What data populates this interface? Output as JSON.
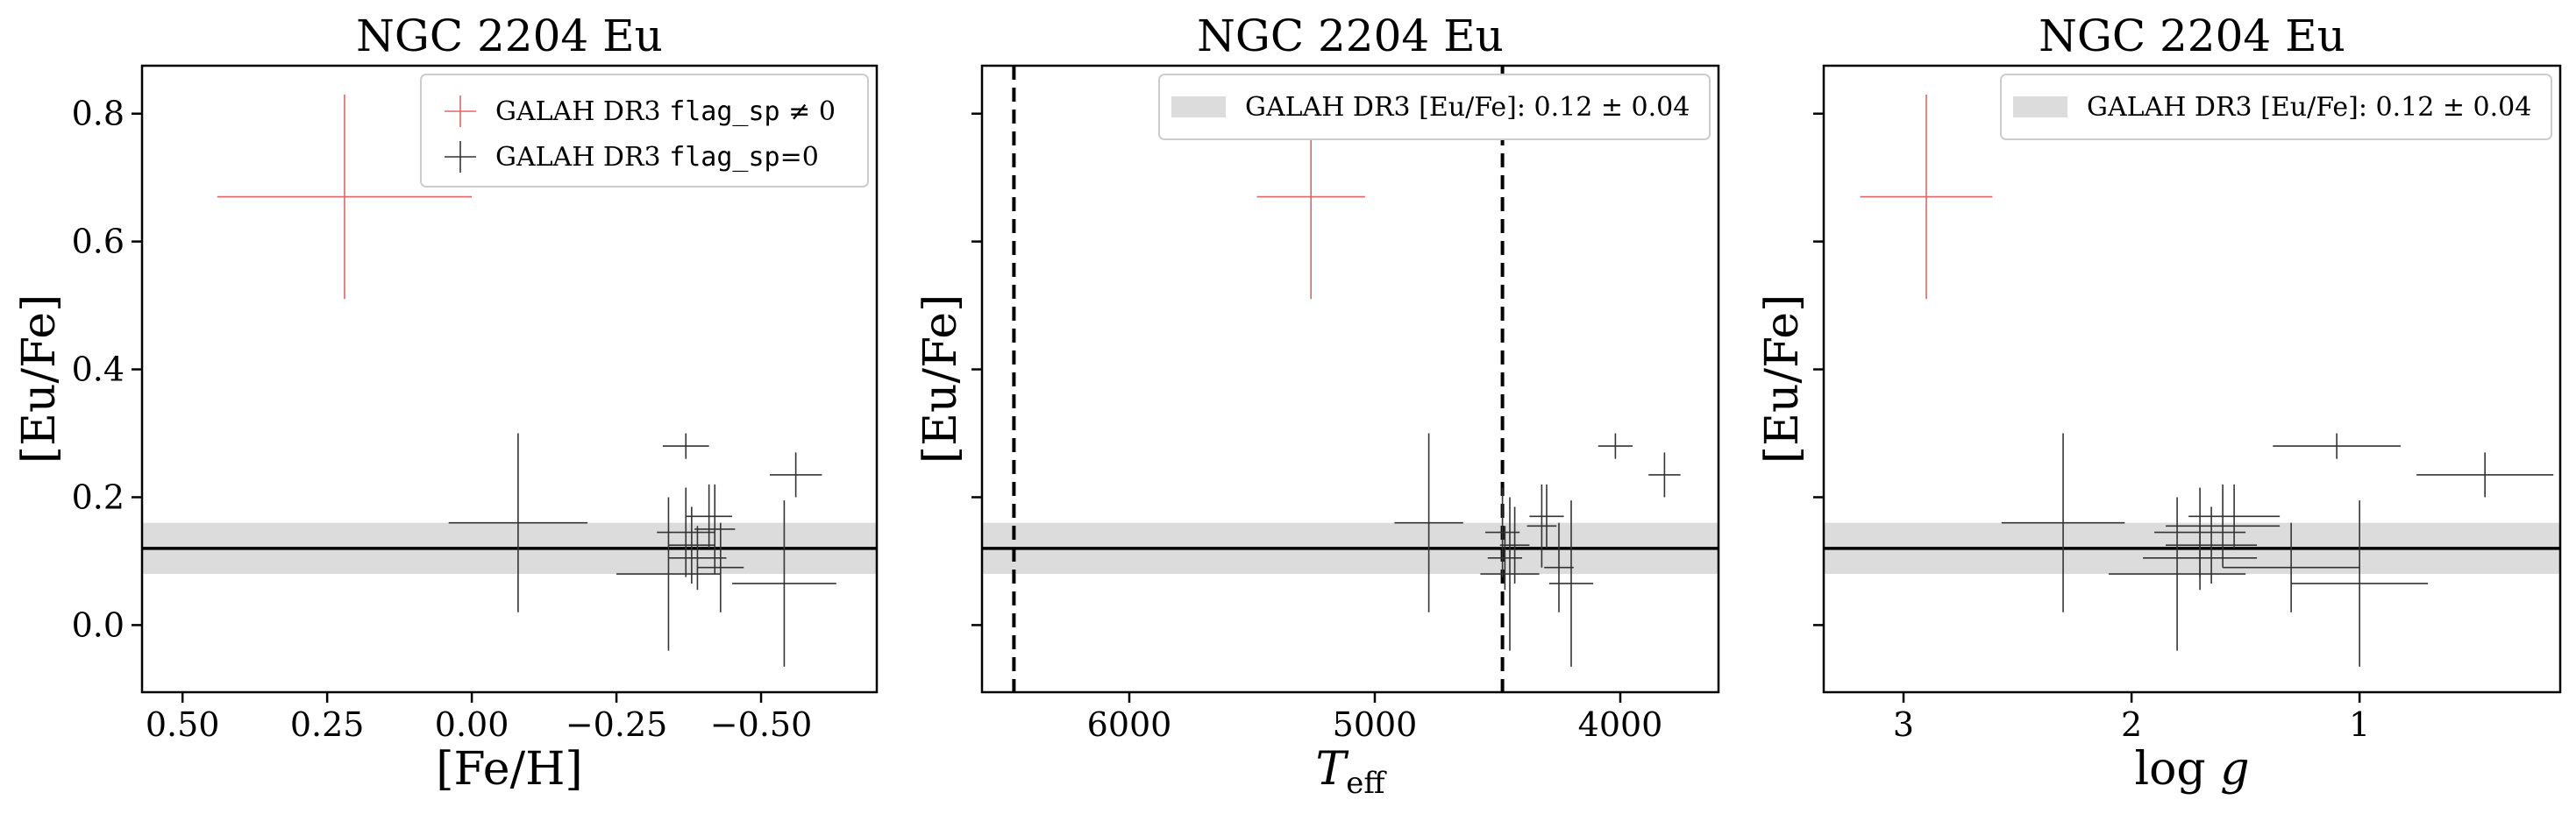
{
  "colors": {
    "flag_nonzero": "#e06666",
    "flag_zero": "#333333",
    "band": "#dcdcdc",
    "mean_line": "#000000",
    "frame": "#000000"
  },
  "chart_data": [
    {
      "type": "scatter",
      "title": "NGC 2204 Eu",
      "xlabel": "[Fe/H]",
      "ylabel": "[Eu/Fe]",
      "xlim": [
        0.57,
        -0.7
      ],
      "ylim": [
        -0.105,
        0.875
      ],
      "x_inverted": true,
      "xticks": [
        0.5,
        0.25,
        0.0,
        -0.25,
        -0.5
      ],
      "xtick_labels": [
        "0.50",
        "0.25",
        "0.00",
        "−0.25",
        "−0.50"
      ],
      "yticks": [
        0.0,
        0.2,
        0.4,
        0.6,
        0.8
      ],
      "ytick_labels": [
        "0.0",
        "0.2",
        "0.4",
        "0.6",
        "0.8"
      ],
      "show_ytick_labels": true,
      "grid": false,
      "legend": {
        "placement": "top-right",
        "entries": [
          {
            "series": 0,
            "prefix": "GALAH DR3 ",
            "mono": "flag_sp",
            "suffix": " ≠ 0"
          },
          {
            "series": 1,
            "prefix": "GALAH DR3 ",
            "mono": "flag_sp",
            "suffix": "=0"
          }
        ]
      },
      "band": {
        "mean": 0.12,
        "err": 0.04
      },
      "series": [
        {
          "name": "GALAH DR3 flag_sp ≠ 0",
          "color": "#e06666",
          "points": [
            {
              "x": 0.22,
              "y": 0.67,
              "xerr": 0.22,
              "yerr": 0.16
            }
          ]
        },
        {
          "name": "GALAH DR3 flag_sp=0",
          "color": "#333333",
          "points": [
            {
              "x": -0.08,
              "y": 0.16,
              "xerr": 0.12,
              "yerr": 0.14
            },
            {
              "x": -0.37,
              "y": 0.28,
              "xerr": 0.04,
              "yerr": 0.02
            },
            {
              "x": -0.56,
              "y": 0.235,
              "xerr": 0.045,
              "yerr": 0.035
            },
            {
              "x": -0.34,
              "y": 0.08,
              "xerr": 0.09,
              "yerr": 0.12
            },
            {
              "x": -0.37,
              "y": 0.145,
              "xerr": 0.05,
              "yerr": 0.07
            },
            {
              "x": -0.41,
              "y": 0.17,
              "xerr": 0.04,
              "yerr": 0.05
            },
            {
              "x": -0.42,
              "y": 0.15,
              "xerr": 0.035,
              "yerr": 0.07
            },
            {
              "x": -0.38,
              "y": 0.125,
              "xerr": 0.04,
              "yerr": 0.06
            },
            {
              "x": -0.39,
              "y": 0.105,
              "xerr": 0.05,
              "yerr": 0.05
            },
            {
              "x": -0.43,
              "y": 0.09,
              "xerr": 0.04,
              "yerr": 0.07
            },
            {
              "x": -0.54,
              "y": 0.065,
              "xerr": 0.09,
              "yerr": 0.13
            }
          ]
        }
      ]
    },
    {
      "type": "scatter",
      "title": "NGC 2204 Eu",
      "xlabel": "T_eff",
      "xlabel_main": "T",
      "xlabel_sub": "eff",
      "ylabel": "[Eu/Fe]",
      "xlim": [
        6600,
        3600
      ],
      "ylim": [
        -0.105,
        0.875
      ],
      "x_inverted": true,
      "xticks": [
        6000,
        5000,
        4000
      ],
      "xtick_labels": [
        "6000",
        "5000",
        "4000"
      ],
      "yticks": [
        0.0,
        0.2,
        0.4,
        0.6,
        0.8
      ],
      "ytick_labels": [
        "0.0",
        "0.2",
        "0.4",
        "0.6",
        "0.8"
      ],
      "show_ytick_labels": false,
      "grid": false,
      "vlines": [
        6470,
        4480
      ],
      "legend": {
        "placement": "top-right",
        "entries": [
          {
            "band": true,
            "prefix": "GALAH DR3 [Eu/Fe]: ",
            "suffix": "0.12 ± 0.04"
          }
        ]
      },
      "band": {
        "mean": 0.12,
        "err": 0.04
      },
      "series": [
        {
          "name": "GALAH DR3 flag_sp ≠ 0",
          "color": "#e06666",
          "points": [
            {
              "x": 5260,
              "y": 0.67,
              "xerr": 220,
              "yerr": 0.16
            }
          ]
        },
        {
          "name": "GALAH DR3 flag_sp=0",
          "color": "#333333",
          "points": [
            {
              "x": 4780,
              "y": 0.16,
              "xerr": 140,
              "yerr": 0.14
            },
            {
              "x": 4020,
              "y": 0.28,
              "xerr": 70,
              "yerr": 0.02
            },
            {
              "x": 3820,
              "y": 0.235,
              "xerr": 65,
              "yerr": 0.035
            },
            {
              "x": 4450,
              "y": 0.08,
              "xerr": 120,
              "yerr": 0.12
            },
            {
              "x": 4480,
              "y": 0.145,
              "xerr": 70,
              "yerr": 0.07
            },
            {
              "x": 4300,
              "y": 0.17,
              "xerr": 70,
              "yerr": 0.05
            },
            {
              "x": 4320,
              "y": 0.155,
              "xerr": 60,
              "yerr": 0.065
            },
            {
              "x": 4430,
              "y": 0.125,
              "xerr": 60,
              "yerr": 0.06
            },
            {
              "x": 4470,
              "y": 0.105,
              "xerr": 70,
              "yerr": 0.05
            },
            {
              "x": 4250,
              "y": 0.09,
              "xerr": 60,
              "yerr": 0.07
            },
            {
              "x": 4200,
              "y": 0.065,
              "xerr": 90,
              "yerr": 0.13
            }
          ]
        }
      ]
    },
    {
      "type": "scatter",
      "title": "NGC 2204 Eu",
      "xlabel": "log g",
      "xlabel_main": "log",
      "xlabel_var": "g",
      "ylabel": "[Eu/Fe]",
      "xlim": [
        3.35,
        0.12
      ],
      "ylim": [
        -0.105,
        0.875
      ],
      "x_inverted": true,
      "xticks": [
        3,
        2,
        1
      ],
      "xtick_labels": [
        "3",
        "2",
        "1"
      ],
      "yticks": [
        0.0,
        0.2,
        0.4,
        0.6,
        0.8
      ],
      "ytick_labels": [
        "0.0",
        "0.2",
        "0.4",
        "0.6",
        "0.8"
      ],
      "show_ytick_labels": false,
      "grid": false,
      "legend": {
        "placement": "top-right",
        "entries": [
          {
            "band": true,
            "prefix": "GALAH DR3 [Eu/Fe]: ",
            "suffix": "0.12 ± 0.04"
          }
        ]
      },
      "band": {
        "mean": 0.12,
        "err": 0.04
      },
      "series": [
        {
          "name": "GALAH DR3 flag_sp ≠ 0",
          "color": "#e06666",
          "points": [
            {
              "x": 2.9,
              "y": 0.67,
              "xerr": 0.29,
              "yerr": 0.16
            }
          ]
        },
        {
          "name": "GALAH DR3 flag_sp=0",
          "color": "#333333",
          "points": [
            {
              "x": 2.3,
              "y": 0.16,
              "xerr": 0.27,
              "yerr": 0.14
            },
            {
              "x": 1.1,
              "y": 0.28,
              "xerr": 0.28,
              "yerr": 0.02
            },
            {
              "x": 0.45,
              "y": 0.235,
              "xerr": 0.3,
              "yerr": 0.035
            },
            {
              "x": 1.8,
              "y": 0.08,
              "xerr": 0.3,
              "yerr": 0.12
            },
            {
              "x": 1.7,
              "y": 0.145,
              "xerr": 0.2,
              "yerr": 0.07
            },
            {
              "x": 1.55,
              "y": 0.17,
              "xerr": 0.2,
              "yerr": 0.05
            },
            {
              "x": 1.6,
              "y": 0.155,
              "xerr": 0.25,
              "yerr": 0.065
            },
            {
              "x": 1.65,
              "y": 0.125,
              "xerr": 0.2,
              "yerr": 0.06
            },
            {
              "x": 1.7,
              "y": 0.105,
              "xerr": 0.25,
              "yerr": 0.05
            },
            {
              "x": 1.3,
              "y": 0.09,
              "xerr": 0.3,
              "yerr": 0.07
            },
            {
              "x": 1.0,
              "y": 0.065,
              "xerr": 0.3,
              "yerr": 0.13
            }
          ]
        }
      ]
    }
  ]
}
